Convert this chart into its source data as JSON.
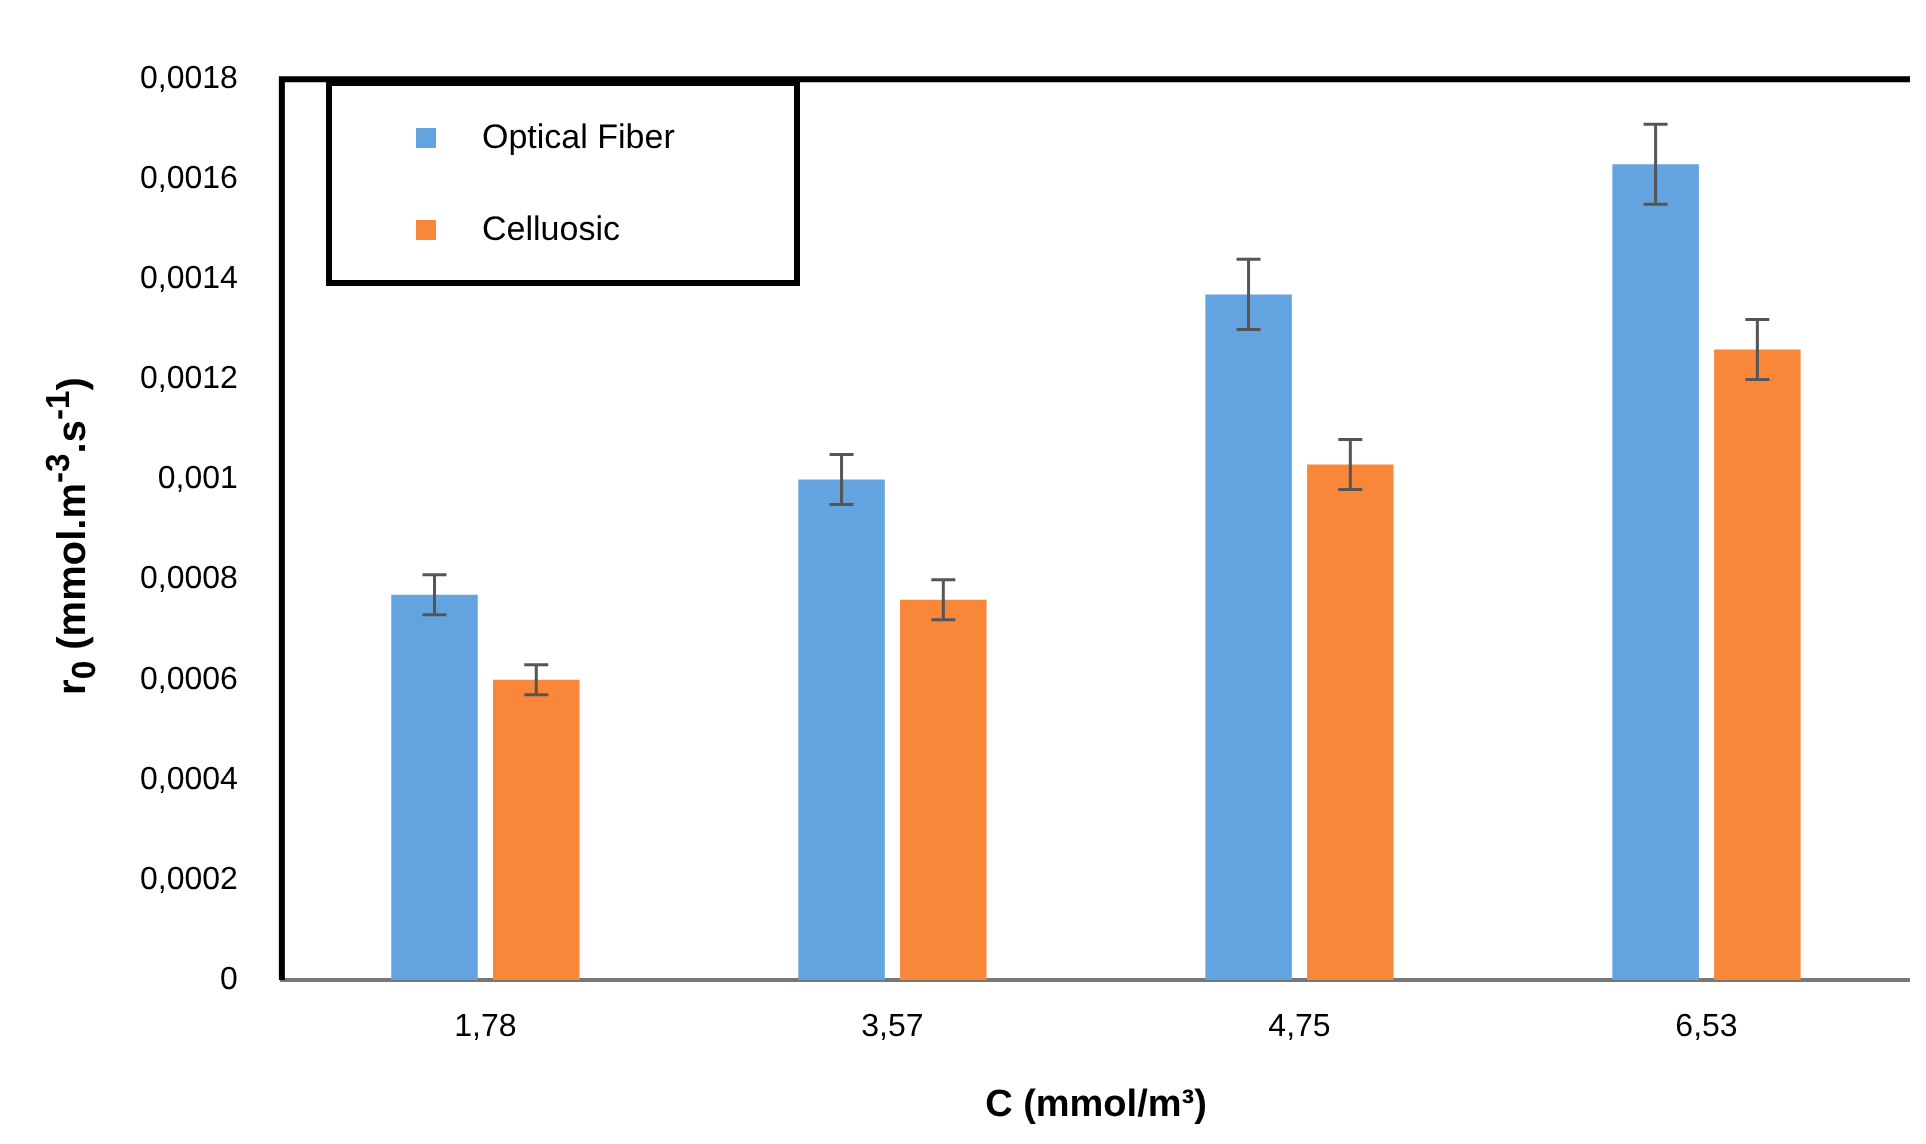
{
  "chart_data": {
    "type": "bar",
    "xlabel": "C (mmol/m³)",
    "ylabel": "r$_{0}$ (mmol.m$^{-3}$.s$^{-1}$)",
    "categories": [
      "1,78",
      "3,57",
      "4,75",
      "6,53"
    ],
    "series": [
      {
        "name": "Optical Fiber",
        "color": "#62a3e0",
        "values": [
          0.00077,
          0.001,
          0.00137,
          0.00163
        ],
        "errors": [
          4e-05,
          5e-05,
          7e-05,
          8e-05
        ]
      },
      {
        "name": "Celluosic",
        "color": "#f8873a",
        "values": [
          0.0006,
          0.00076,
          0.00103,
          0.00126
        ],
        "errors": [
          3e-05,
          4e-05,
          5e-05,
          6e-05
        ]
      }
    ],
    "ylim": [
      0,
      0.0018
    ],
    "yticks": [
      {
        "value": 0,
        "label": "0"
      },
      {
        "value": 0.0002,
        "label": "0,0002"
      },
      {
        "value": 0.0004,
        "label": "0,0004"
      },
      {
        "value": 0.0006,
        "label": "0,0006"
      },
      {
        "value": 0.0008,
        "label": "0,0008"
      },
      {
        "value": 0.001,
        "label": "0,001"
      },
      {
        "value": 0.0012,
        "label": "0,0012"
      },
      {
        "value": 0.0014,
        "label": "0,0014"
      },
      {
        "value": 0.0016,
        "label": "0,0016"
      },
      {
        "value": 0.0018,
        "label": "0,0018"
      }
    ],
    "grid": false,
    "legend": "top left"
  }
}
